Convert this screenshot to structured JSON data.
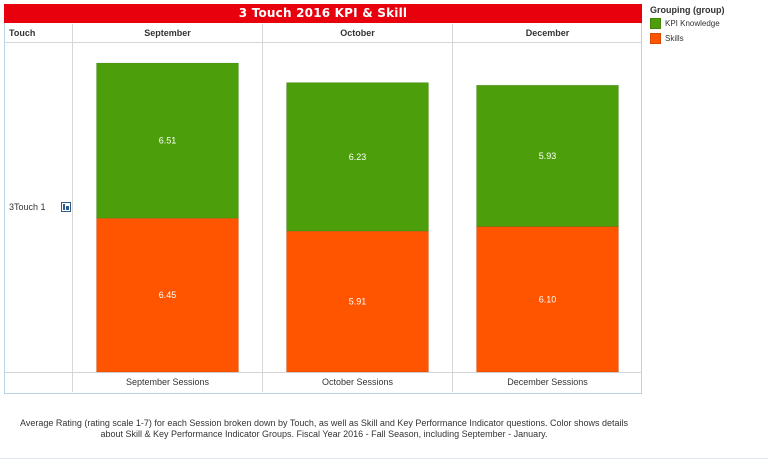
{
  "chart_data": {
    "type": "bar",
    "title": "3 Touch 2016 KPI & Skill",
    "row_header": "Touch",
    "row_label": "3Touch 1",
    "columns": [
      "September",
      "October",
      "December"
    ],
    "categories": [
      "September Sessions",
      "October Sessions",
      "December Sessions"
    ],
    "stacked": true,
    "series": [
      {
        "name": "Skills",
        "values": [
          6.45,
          5.91,
          6.1
        ],
        "color": "#ff5500"
      },
      {
        "name": "KPI Knowledge",
        "values": [
          6.51,
          6.23,
          5.93
        ],
        "color": "#4c9f0a"
      }
    ],
    "data_labels": {
      "Skills": [
        "6.45",
        "5.91",
        "6.10"
      ],
      "KPI Knowledge": [
        "6.51",
        "6.23",
        "5.93"
      ]
    },
    "ylim": [
      0,
      13.8
    ],
    "legend": {
      "title": "Grouping (group)",
      "placement": "right",
      "entries": [
        "KPI Knowledge",
        "Skills"
      ]
    }
  },
  "caption": [
    "Average Rating (rating scale 1-7) for each Session broken down by Touch, as well as Skill and Key Performance Indicator questions.  Color shows details",
    "about Skill & Key Performance Indicator Groups.  Fiscal Year 2016 - Fall Season, including September - January."
  ]
}
